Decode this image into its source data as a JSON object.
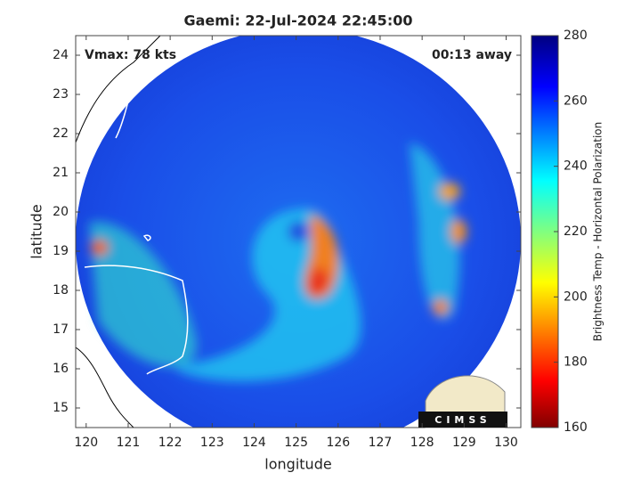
{
  "chart_data": {
    "type": "map",
    "title": "Gaemi: 22-Jul-2024 22:45:00",
    "annotations": [
      "Vmax: 78 kts",
      "00:13 away"
    ],
    "xlabel": "longitude",
    "ylabel": "latitude",
    "xlim": [
      119.75,
      130.35
    ],
    "ylim": [
      14.5,
      24.5
    ],
    "xticks": [
      120,
      121,
      122,
      123,
      124,
      125,
      126,
      127,
      128,
      129,
      130
    ],
    "yticks": [
      15,
      16,
      17,
      18,
      19,
      20,
      21,
      22,
      23,
      24
    ],
    "colorbar": {
      "label": "Brightness Temp - Horizontal Polarization",
      "clim": [
        160,
        280
      ],
      "ticks": [
        160,
        180,
        200,
        220,
        240,
        260,
        280
      ]
    },
    "logo": "CIMSS"
  }
}
